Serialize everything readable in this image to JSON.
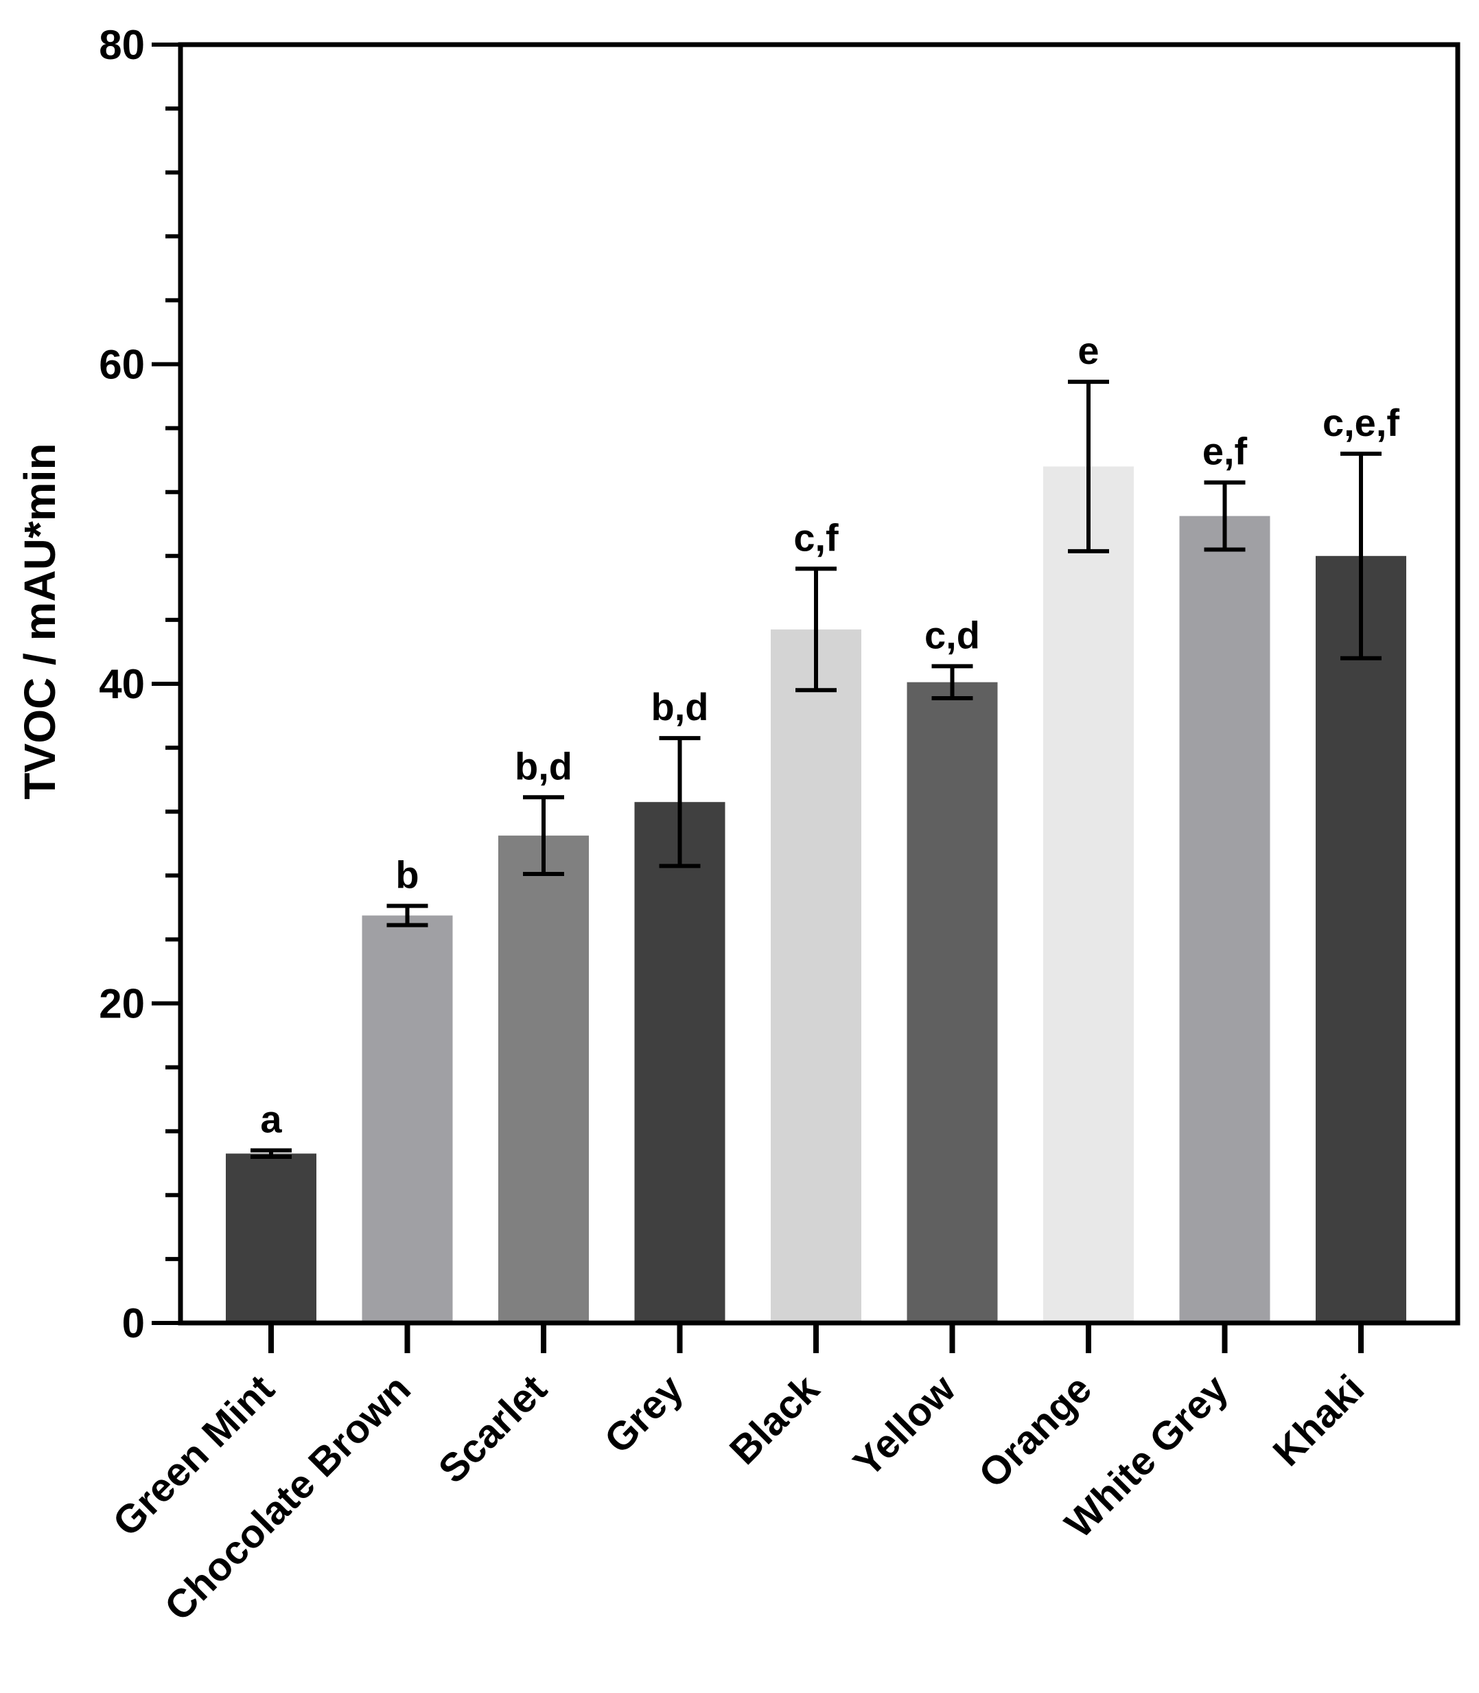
{
  "chart_data": {
    "type": "bar",
    "title": "",
    "xlabel": "",
    "ylabel": "TVOC / mAU*min",
    "ylim": [
      0,
      80
    ],
    "y_major_ticks": [
      0,
      20,
      40,
      60,
      80
    ],
    "y_minor_step": 4,
    "grid": false,
    "categories": [
      "Green Mint",
      "Chocolate Brown",
      "Scarlet",
      "Grey",
      "Black",
      "Yellow",
      "Orange",
      "White Grey",
      "Khaki"
    ],
    "values": [
      10.6,
      25.5,
      30.5,
      32.6,
      43.4,
      40.1,
      53.6,
      50.5,
      48.0
    ],
    "errors": [
      0.2,
      0.6,
      2.4,
      4.0,
      3.8,
      1.0,
      5.3,
      2.1,
      6.4
    ],
    "significance_labels": [
      "a",
      "b",
      "b,d",
      "b,d",
      "c,f",
      "c,d",
      "e",
      "e,f",
      "c,e,f"
    ],
    "bar_colors": [
      "#404040",
      "#a0a0a4",
      "#808080",
      "#404040",
      "#d4d4d4",
      "#606060",
      "#e8e8e8",
      "#a0a0a4",
      "#404040"
    ]
  }
}
